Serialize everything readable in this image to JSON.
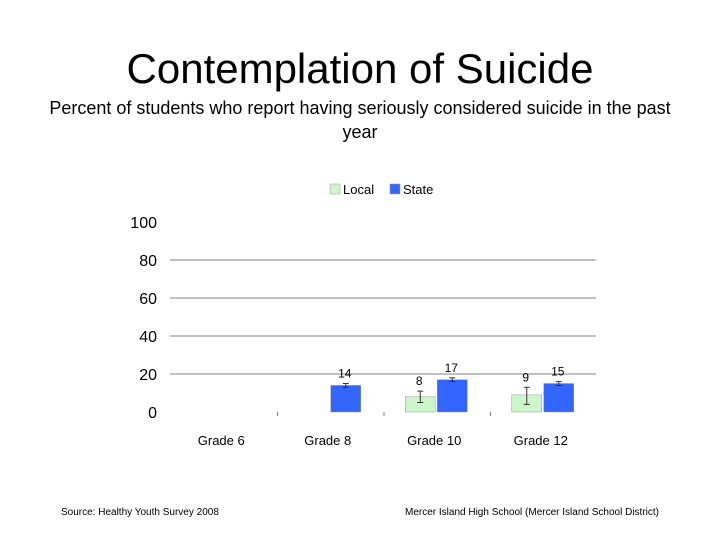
{
  "slide": {
    "title": "Contemplation of Suicide",
    "subtitle": "Percent of students who report having seriously considered suicide in the past year",
    "source": "Source: Healthy Youth Survey 2008",
    "school": "Mercer Island High School (Mercer Island School District)"
  },
  "chart_data": {
    "type": "bar",
    "categories": [
      "Grade 6",
      "Grade 8",
      "Grade 10",
      "Grade 12"
    ],
    "series": [
      {
        "name": "Local",
        "color": "#ccf5cc",
        "values": [
          null,
          null,
          8,
          9
        ],
        "err_low": [
          null,
          null,
          5,
          4
        ],
        "err_high": [
          null,
          null,
          11,
          13
        ]
      },
      {
        "name": "State",
        "color": "#3366ff",
        "values": [
          null,
          14,
          17,
          15
        ],
        "err_low": [
          null,
          13,
          16,
          14
        ],
        "err_high": [
          null,
          15,
          18,
          16
        ]
      }
    ],
    "data_labels": [
      [
        null,
        null,
        "8",
        "9"
      ],
      [
        null,
        "14",
        "17",
        "15"
      ]
    ],
    "yticks": [
      0,
      20,
      40,
      60,
      80,
      100
    ],
    "ylim": [
      0,
      100
    ],
    "grid": true,
    "legend": "top-center"
  }
}
